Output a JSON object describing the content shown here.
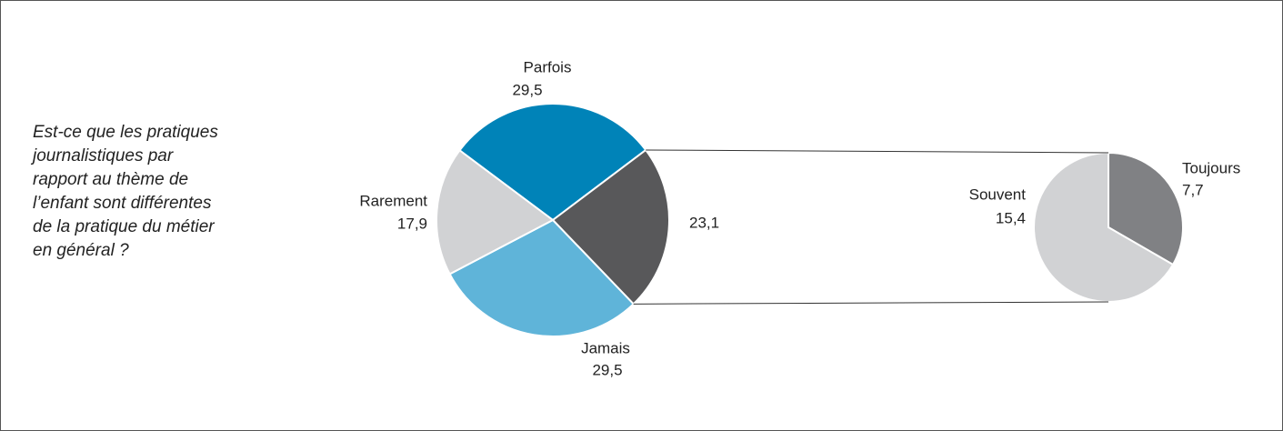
{
  "question_lines": [
    "Est-ce que les pratiques",
    "journalistiques par",
    "rapport au thème de",
    "l’enfant sont différentes",
    "de la pratique du métier",
    "en général ?"
  ],
  "chart_data": [
    {
      "type": "pie",
      "categories": [
        "Parfois",
        null,
        "Jamais",
        "Rarement"
      ],
      "values": [
        29.5,
        23.1,
        29.5,
        17.9
      ],
      "value_labels": [
        "29,5",
        "23,1",
        "29,5",
        "17,9"
      ],
      "colors": [
        "#0083b8",
        "#58585a",
        "#5fb4d9",
        "#d1d2d4"
      ]
    },
    {
      "type": "pie",
      "categories": [
        "Toujours",
        "Souvent"
      ],
      "values": [
        7.7,
        15.4
      ],
      "value_labels": [
        "7,7",
        "15,4"
      ],
      "colors": [
        "#808184",
        "#d1d2d4"
      ]
    }
  ]
}
